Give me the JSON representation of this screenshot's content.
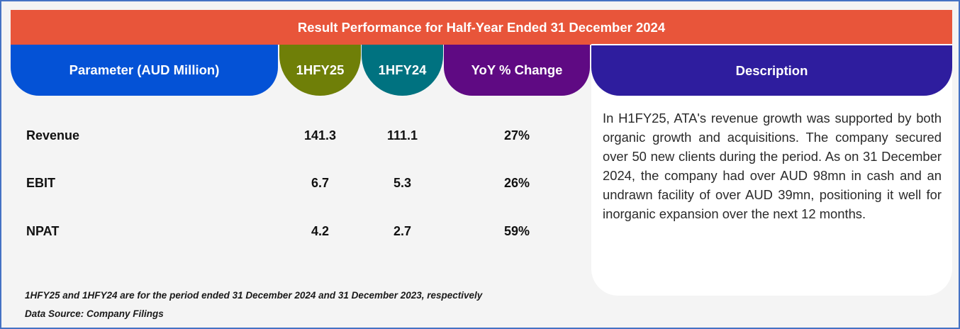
{
  "title": "Result Performance for Half-Year Ended 31 December 2024",
  "colors": {
    "banner": "#E8553A",
    "parameter_header": "#0452D6",
    "current_header": "#6F7F08",
    "previous_header": "#007280",
    "yoy_header": "#5F0A83",
    "description_header": "#2E1D9E",
    "frame_border": "#4472C4"
  },
  "headers": {
    "parameter": "Parameter (AUD Million)",
    "current": "1HFY25",
    "previous": "1HFY24",
    "yoy": "YoY % Change",
    "description": "Description"
  },
  "rows": [
    {
      "parameter": "Revenue",
      "current": "141.3",
      "previous": "111.1",
      "yoy": "27%"
    },
    {
      "parameter": "EBIT",
      "current": "6.7",
      "previous": "5.3",
      "yoy": "26%"
    },
    {
      "parameter": "NPAT",
      "current": "4.2",
      "previous": "2.7",
      "yoy": "59%"
    }
  ],
  "description": "In H1FY25, ATA's revenue growth was supported by both organic growth and acquisitions. The company secured over 50 new clients during the period. As on 31 December 2024, the company had over AUD 98mn in cash and an undrawn facility of over AUD 39mn, positioning it well for inorganic expansion over the next 12 months.",
  "footnotes": {
    "period_note": "1HFY25 and 1HFY24 are for the period ended 31 December 2024 and 31 December 2023, respectively",
    "source": "Data Source: Company Filings"
  }
}
